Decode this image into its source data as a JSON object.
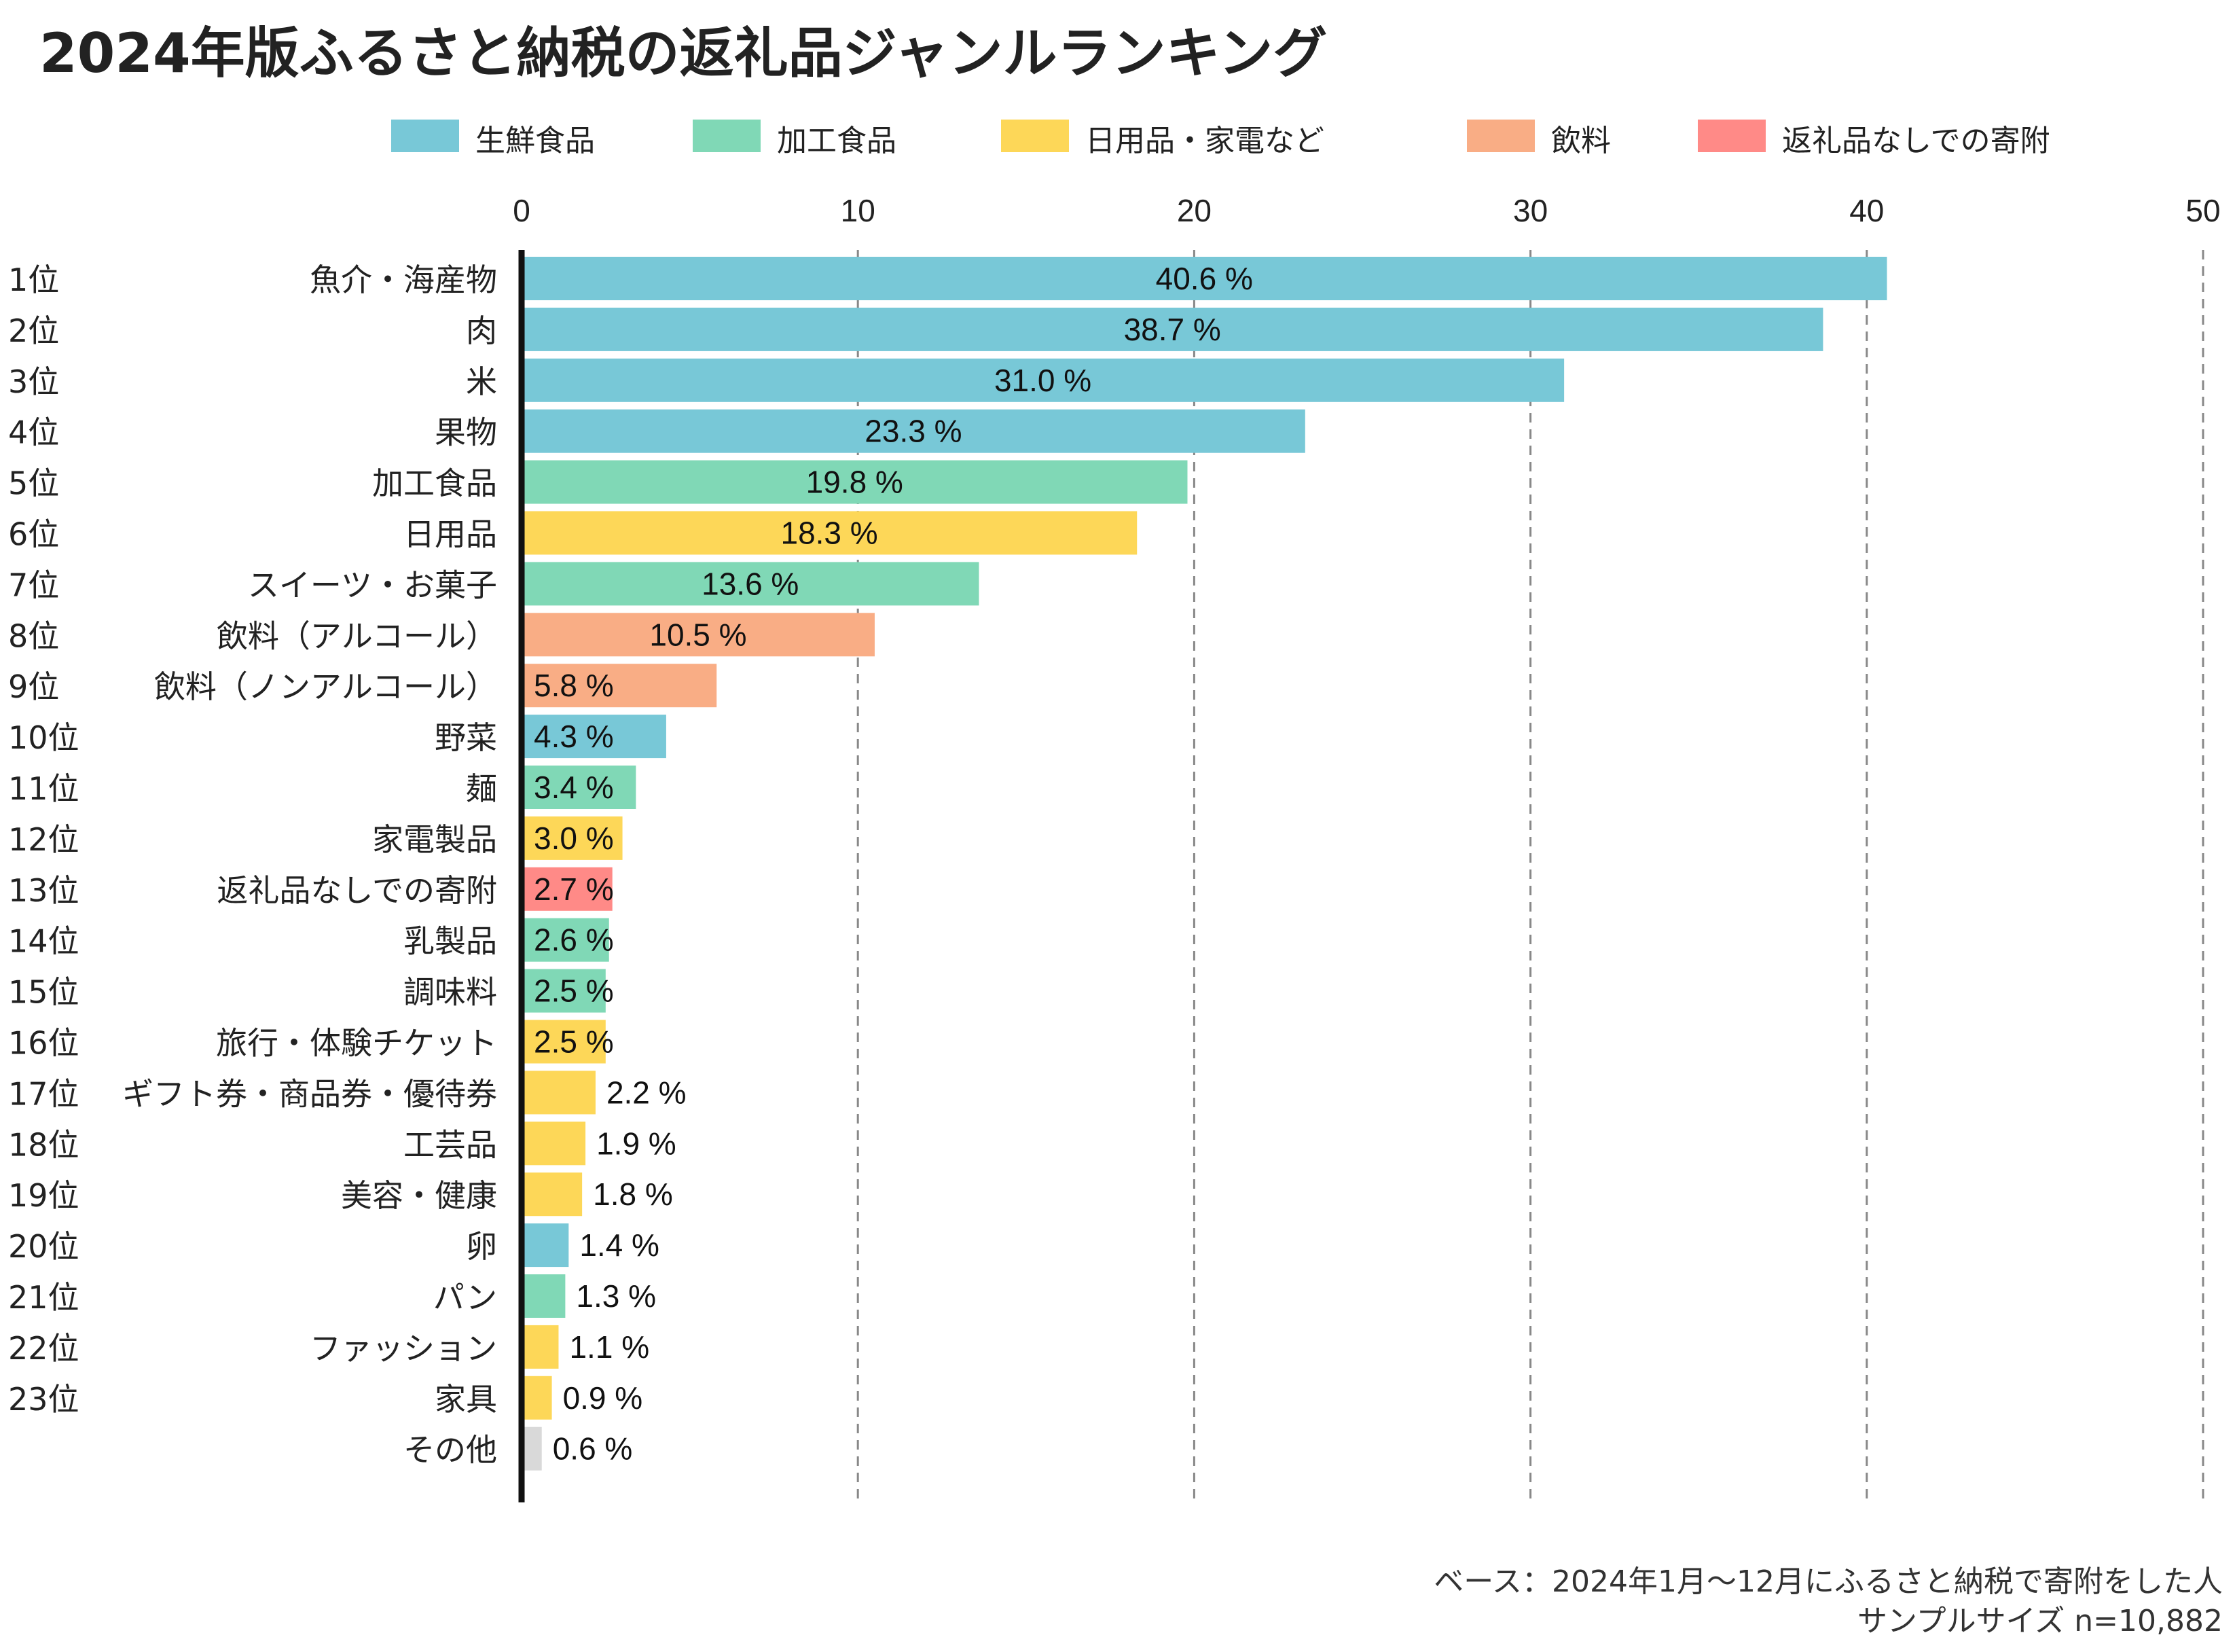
{
  "title": "2024年版ふるさと納税の返礼品ジャンルランキング",
  "footer": {
    "base": "ベース：2024年1月〜12月にふるさと納税で寄附をした人",
    "sample": "サンプルサイズ n=10,882"
  },
  "chart_data": {
    "type": "bar",
    "orientation": "horizontal",
    "title": "2024年版ふるさと納税の返礼品ジャンルランキング",
    "xlim": [
      0,
      50
    ],
    "xticks": [
      0,
      10,
      20,
      30,
      40,
      50
    ],
    "grid": "x-dashed",
    "value_suffix": " %",
    "legend_position": "top",
    "legend": [
      {
        "key": "fresh",
        "label": "生鮮食品",
        "color": "#78C8D7"
      },
      {
        "key": "processed",
        "label": "加工食品",
        "color": "#80D8B6"
      },
      {
        "key": "daily",
        "label": "日用品・家電など",
        "color": "#FDD758"
      },
      {
        "key": "drink",
        "label": "飲料",
        "color": "#F9AD85"
      },
      {
        "key": "none",
        "label": "返礼品なしでの寄附",
        "color": "#FF8A87"
      }
    ],
    "other_color": "#D9D9D9",
    "rows": [
      {
        "rank": "1位",
        "label": "魚介・海産物",
        "value": 40.6,
        "value_label": "40.6",
        "group": "fresh"
      },
      {
        "rank": "2位",
        "label": "肉",
        "value": 38.7,
        "value_label": "38.7",
        "group": "fresh"
      },
      {
        "rank": "3位",
        "label": "米",
        "value": 31.0,
        "value_label": "31.0",
        "group": "fresh"
      },
      {
        "rank": "4位",
        "label": "果物",
        "value": 23.3,
        "value_label": "23.3",
        "group": "fresh"
      },
      {
        "rank": "5位",
        "label": "加工食品",
        "value": 19.8,
        "value_label": "19.8",
        "group": "processed"
      },
      {
        "rank": "6位",
        "label": "日用品",
        "value": 18.3,
        "value_label": "18.3",
        "group": "daily"
      },
      {
        "rank": "7位",
        "label": "スイーツ・お菓子",
        "value": 13.6,
        "value_label": "13.6",
        "group": "processed"
      },
      {
        "rank": "8位",
        "label": "飲料（アルコール）",
        "value": 10.5,
        "value_label": "10.5",
        "group": "drink"
      },
      {
        "rank": "9位",
        "label": "飲料（ノンアルコール）",
        "value": 5.8,
        "value_label": "5.8",
        "group": "drink"
      },
      {
        "rank": "10位",
        "label": "野菜",
        "value": 4.3,
        "value_label": "4.3",
        "group": "fresh"
      },
      {
        "rank": "11位",
        "label": "麺",
        "value": 3.4,
        "value_label": "3.4",
        "group": "processed"
      },
      {
        "rank": "12位",
        "label": "家電製品",
        "value": 3.0,
        "value_label": "3.0",
        "group": "daily"
      },
      {
        "rank": "13位",
        "label": "返礼品なしでの寄附",
        "value": 2.7,
        "value_label": "2.7",
        "group": "none"
      },
      {
        "rank": "14位",
        "label": "乳製品",
        "value": 2.6,
        "value_label": "2.6",
        "group": "processed"
      },
      {
        "rank": "15位",
        "label": "調味料",
        "value": 2.5,
        "value_label": "2.5",
        "group": "processed"
      },
      {
        "rank": "16位",
        "label": "旅行・体験チケット",
        "value": 2.5,
        "value_label": "2.5",
        "group": "daily"
      },
      {
        "rank": "17位",
        "label": "ギフト券・商品券・優待券",
        "value": 2.2,
        "value_label": "2.2",
        "group": "daily"
      },
      {
        "rank": "18位",
        "label": "工芸品",
        "value": 1.9,
        "value_label": "1.9",
        "group": "daily"
      },
      {
        "rank": "19位",
        "label": "美容・健康",
        "value": 1.8,
        "value_label": "1.8",
        "group": "daily"
      },
      {
        "rank": "20位",
        "label": "卵",
        "value": 1.4,
        "value_label": "1.4",
        "group": "fresh"
      },
      {
        "rank": "21位",
        "label": "パン",
        "value": 1.3,
        "value_label": "1.3",
        "group": "processed"
      },
      {
        "rank": "22位",
        "label": "ファッション",
        "value": 1.1,
        "value_label": "1.1",
        "group": "daily"
      },
      {
        "rank": "23位",
        "label": "家具",
        "value": 0.9,
        "value_label": "0.9",
        "group": "daily"
      },
      {
        "rank": "",
        "label": "その他",
        "value": 0.6,
        "value_label": "0.6",
        "group": "other"
      }
    ]
  }
}
